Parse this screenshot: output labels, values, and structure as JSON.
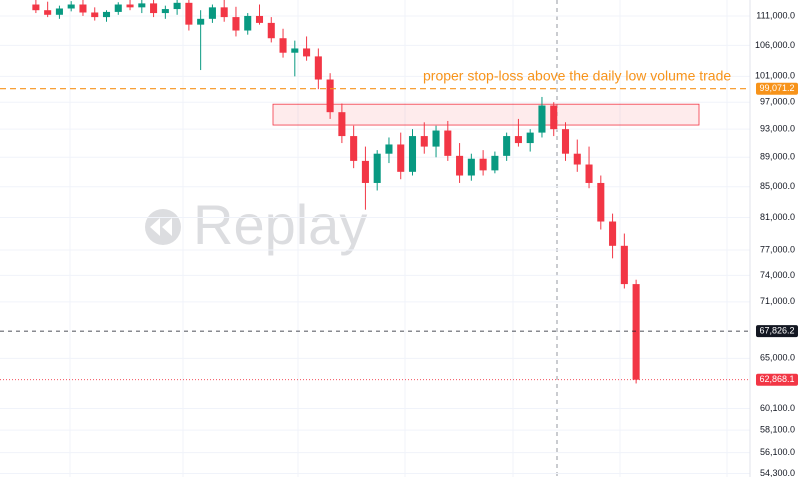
{
  "chart_data": {
    "type": "candlestick",
    "log_scale": true,
    "grid": true,
    "ylim": [
      54000,
      113800
    ],
    "yticks": [
      {
        "value": 111000,
        "label": "111,000.0"
      },
      {
        "value": 106000,
        "label": "106,000.0"
      },
      {
        "value": 101000,
        "label": "101,000.0"
      },
      {
        "value": 97000,
        "label": "97,000.0"
      },
      {
        "value": 93000,
        "label": "93,000.0"
      },
      {
        "value": 89000,
        "label": "89,000.0"
      },
      {
        "value": 85000,
        "label": "85,000.0"
      },
      {
        "value": 81000,
        "label": "81,000.0"
      },
      {
        "value": 77000,
        "label": "77,000.0"
      },
      {
        "value": 74000,
        "label": "74,000.0"
      },
      {
        "value": 71000,
        "label": "71,000.0"
      },
      {
        "value": 65000,
        "label": "65,000.0"
      },
      {
        "value": 60100,
        "label": "60,100.0"
      },
      {
        "value": 58100,
        "label": "58,100.0"
      },
      {
        "value": 56100,
        "label": "56,100.0"
      },
      {
        "value": 54300,
        "label": "54,300.0"
      }
    ],
    "up_color": "#089981",
    "down_color": "#f23645",
    "categories": [
      null,
      null,
      null,
      null,
      null,
      null,
      null,
      null,
      null,
      null,
      null,
      null,
      null,
      null,
      null,
      null,
      null,
      null,
      null,
      null,
      null,
      null,
      null,
      null,
      null,
      null,
      null,
      null,
      null,
      null,
      null,
      null,
      null,
      null,
      null,
      null,
      null,
      null,
      null,
      null,
      null,
      null,
      null,
      null,
      null,
      null,
      null,
      null,
      null,
      null,
      null,
      null
    ],
    "open": [
      113000,
      112000,
      111200,
      112300,
      113000,
      111600,
      110800,
      111700,
      113000,
      112500,
      113200,
      111500,
      112200,
      113300,
      109500,
      110500,
      112500,
      110800,
      108500,
      111000,
      109800,
      107200,
      104800,
      105500,
      104200,
      100500,
      95500,
      92000,
      88500,
      85500,
      89500,
      90800,
      87000,
      92000,
      90500,
      92800,
      89200,
      86500,
      88800,
      87200,
      89200,
      92000,
      91000,
      92500,
      96500,
      93000,
      89500,
      88000,
      85500,
      80500,
      77500,
      73000
    ],
    "high": [
      113800,
      113500,
      112800,
      113600,
      113800,
      112500,
      112000,
      113400,
      113800,
      113800,
      113800,
      112800,
      113800,
      113800,
      112000,
      113000,
      113800,
      112600,
      111500,
      113000,
      110800,
      108800,
      106800,
      107500,
      105500,
      101500,
      96800,
      93500,
      90500,
      90000,
      91800,
      92500,
      93000,
      94000,
      93500,
      94200,
      91000,
      89500,
      90000,
      89800,
      92500,
      94500,
      93000,
      97800,
      97000,
      94000,
      91500,
      90500,
      86500,
      81500,
      79000,
      73500
    ],
    "low": [
      111500,
      110800,
      110500,
      111800,
      111000,
      110200,
      110000,
      111200,
      112000,
      111500,
      110800,
      110500,
      111200,
      108500,
      102000,
      109800,
      110000,
      107500,
      107800,
      109500,
      106500,
      104000,
      101000,
      103500,
      99000,
      94500,
      91000,
      87500,
      82000,
      84500,
      88200,
      86000,
      86500,
      89500,
      89000,
      88500,
      85500,
      85800,
      86500,
      86800,
      88500,
      90500,
      89800,
      91800,
      92000,
      88500,
      87000,
      84800,
      79500,
      76000,
      72500,
      62500
    ],
    "close": [
      112000,
      111200,
      112300,
      113000,
      111600,
      110800,
      111700,
      113000,
      112500,
      113200,
      111500,
      112200,
      113300,
      109500,
      110500,
      112500,
      110800,
      108500,
      111000,
      109800,
      107200,
      104800,
      105500,
      104200,
      100500,
      95500,
      92000,
      88500,
      85500,
      89500,
      90800,
      87000,
      92000,
      90500,
      92800,
      89200,
      86500,
      88800,
      87200,
      89200,
      92000,
      91000,
      92500,
      96500,
      93000,
      89500,
      88000,
      85500,
      80500,
      77500,
      73000,
      62868.1
    ],
    "price_lines": [
      {
        "value": {
          "value": 99071.2,
          "label": "99,071.2"
        },
        "color": "#f7931a",
        "dash": "6,4"
      },
      {
        "value": {
          "value": 67826.2,
          "label": "67,826.2"
        },
        "color": "#131722",
        "dash": "4,4"
      },
      {
        "value": {
          "value": 62868.1,
          "label": "62,868.1"
        },
        "color": "#f23645",
        "dash": "1,2"
      }
    ],
    "zone": {
      "low": 93600,
      "high": 96700,
      "color": "#f23645"
    },
    "annotation": "proper stop-loss above the daily low volume trade",
    "watermark": "Replay"
  }
}
